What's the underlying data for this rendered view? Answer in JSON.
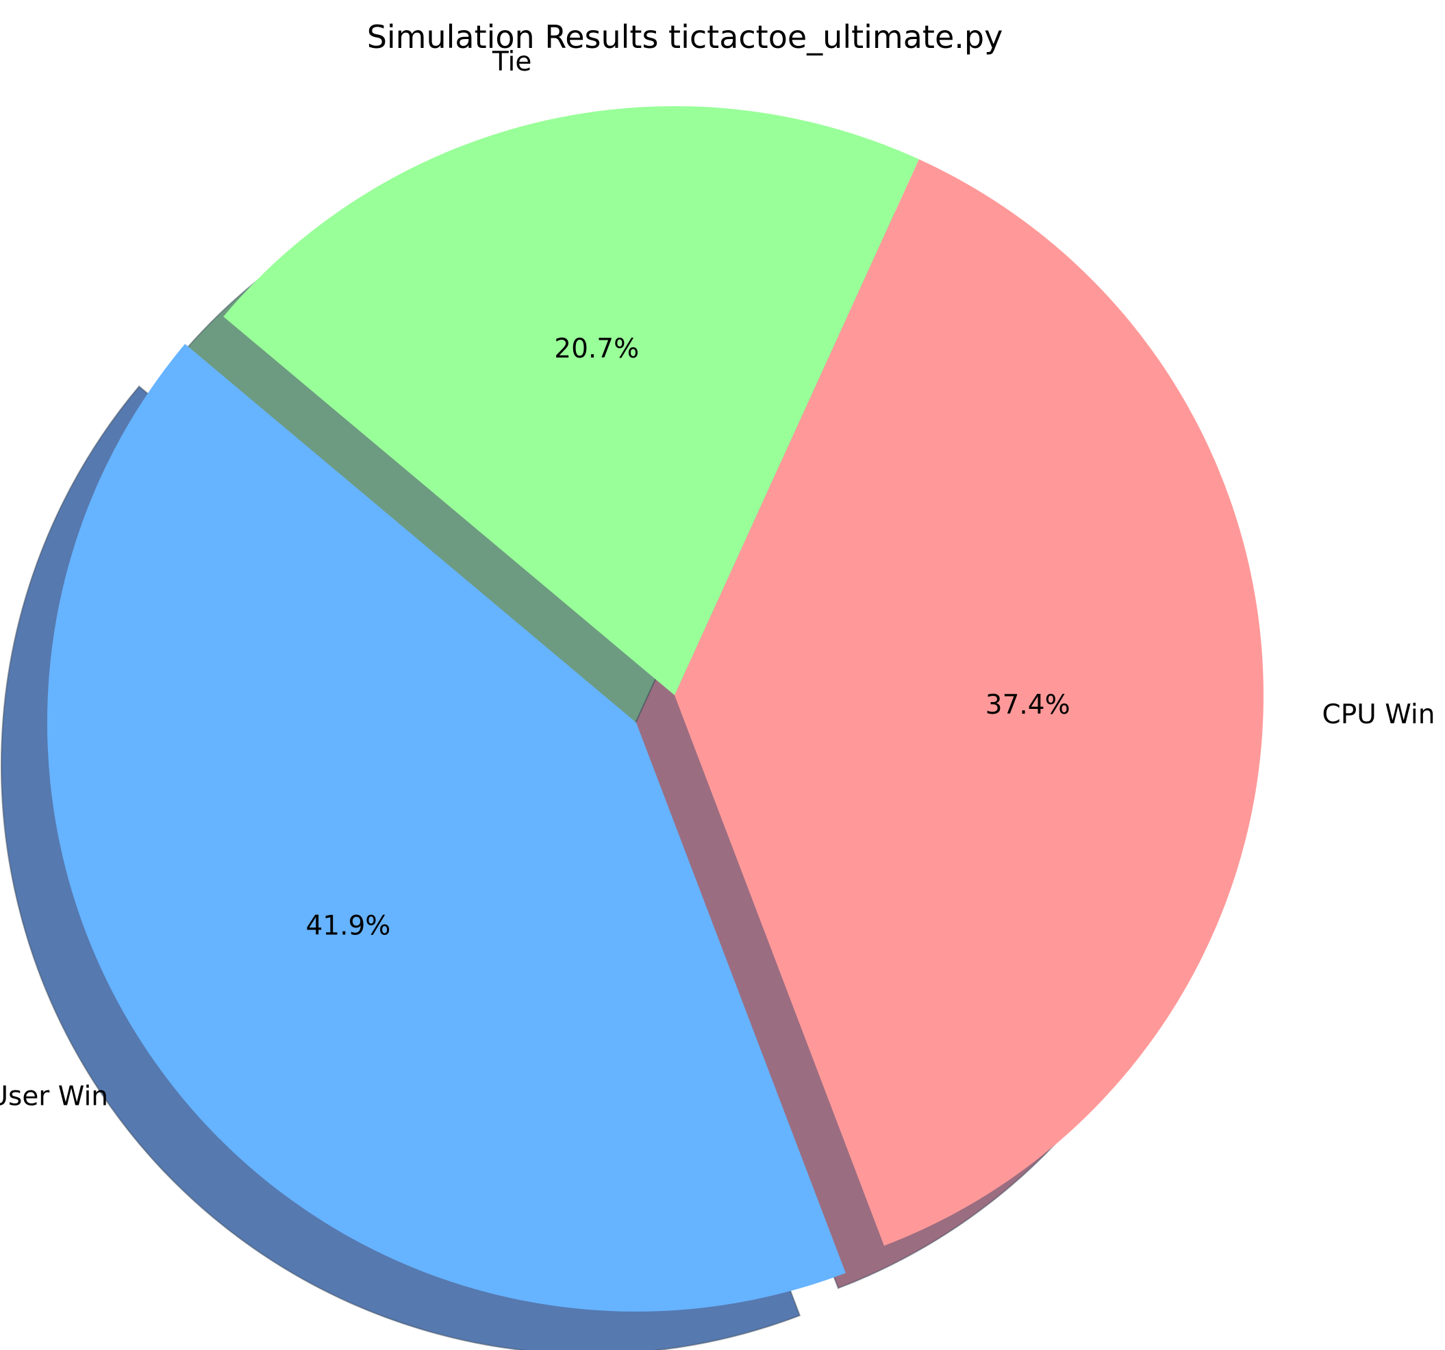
{
  "chart_data": {
    "type": "pie",
    "title": "Simulation Results tictactoe_ultimate.py",
    "slices": [
      {
        "label": "User Win",
        "value": 41.9,
        "pct_label": "41.9%",
        "color": "#66b3ff",
        "exploded": true
      },
      {
        "label": "CPU Win",
        "value": 37.4,
        "pct_label": "37.4%",
        "color": "#ff9999",
        "exploded": false
      },
      {
        "label": "Tie",
        "value": 20.7,
        "pct_label": "20.7%",
        "color": "#99ff99",
        "exploded": false
      }
    ],
    "shadow": true,
    "start_angle_deg": 140,
    "direction": "counterclockwise"
  }
}
